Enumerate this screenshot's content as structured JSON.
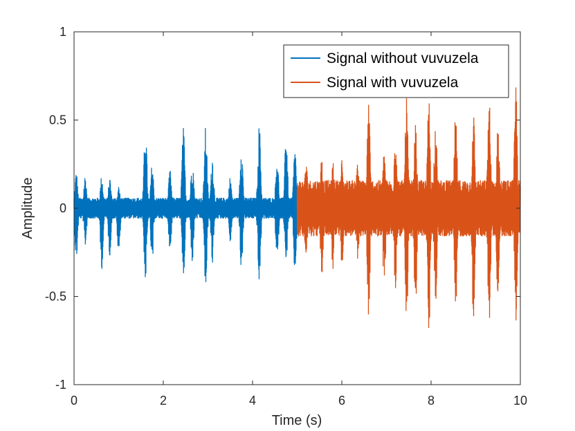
{
  "chart_data": {
    "type": "line",
    "title": "",
    "xlabel": "Time (s)",
    "ylabel": "Amplitude",
    "xlim": [
      0,
      10
    ],
    "ylim": [
      -1,
      1
    ],
    "x_ticks": [
      0,
      2,
      4,
      6,
      8,
      10
    ],
    "x_tick_labels": [
      "0",
      "2",
      "4",
      "6",
      "8",
      "10"
    ],
    "y_ticks": [
      -1,
      -0.5,
      0,
      0.5,
      1
    ],
    "y_tick_labels": [
      "-1",
      "-0.5",
      "0",
      "0.5",
      "1"
    ],
    "grid": false,
    "legend": {
      "location": "top-right",
      "box": true
    },
    "series": [
      {
        "name": "Signal without vuvuzela",
        "color": "#0072BD",
        "x_range": [
          0,
          5
        ],
        "noise_floor": 0.06,
        "peaks": [
          {
            "t": 0.05,
            "max": 0.21,
            "min": -0.3
          },
          {
            "t": 0.25,
            "max": 0.19,
            "min": -0.22
          },
          {
            "t": 0.62,
            "max": 0.19,
            "min": -0.35
          },
          {
            "t": 0.8,
            "max": 0.18,
            "min": -0.27
          },
          {
            "t": 1.0,
            "max": 0.13,
            "min": -0.27
          },
          {
            "t": 1.6,
            "max": 0.48,
            "min": -0.42
          },
          {
            "t": 1.75,
            "max": 0.26,
            "min": -0.33
          },
          {
            "t": 2.15,
            "max": 0.22,
            "min": -0.25
          },
          {
            "t": 2.45,
            "max": 0.46,
            "min": -0.42
          },
          {
            "t": 2.65,
            "max": 0.29,
            "min": -0.31
          },
          {
            "t": 2.95,
            "max": 0.47,
            "min": -0.47
          },
          {
            "t": 3.1,
            "max": 0.3,
            "min": -0.32
          },
          {
            "t": 3.5,
            "max": 0.18,
            "min": -0.2
          },
          {
            "t": 3.75,
            "max": 0.38,
            "min": -0.35
          },
          {
            "t": 4.15,
            "max": 0.48,
            "min": -0.44
          },
          {
            "t": 4.55,
            "max": 0.3,
            "min": -0.32
          },
          {
            "t": 4.75,
            "max": 0.45,
            "min": -0.33
          },
          {
            "t": 4.95,
            "max": 0.35,
            "min": -0.38
          }
        ]
      },
      {
        "name": "Signal with vuvuzela",
        "color": "#D95319",
        "x_range": [
          5,
          10
        ],
        "noise_floor": 0.16,
        "peaks": [
          {
            "t": 5.2,
            "max": 0.28,
            "min": -0.3
          },
          {
            "t": 5.55,
            "max": 0.3,
            "min": -0.4
          },
          {
            "t": 5.8,
            "max": 0.27,
            "min": -0.35
          },
          {
            "t": 6.0,
            "max": 0.28,
            "min": -0.35
          },
          {
            "t": 6.35,
            "max": 0.3,
            "min": -0.35
          },
          {
            "t": 6.6,
            "max": 0.64,
            "min": -0.63
          },
          {
            "t": 6.95,
            "max": 0.34,
            "min": -0.45
          },
          {
            "t": 7.2,
            "max": 0.44,
            "min": -0.48
          },
          {
            "t": 7.45,
            "max": 0.64,
            "min": -0.74
          },
          {
            "t": 7.65,
            "max": 0.48,
            "min": -0.6
          },
          {
            "t": 7.95,
            "max": 0.64,
            "min": -0.75
          },
          {
            "t": 8.1,
            "max": 0.52,
            "min": -0.55
          },
          {
            "t": 8.55,
            "max": 0.54,
            "min": -0.63
          },
          {
            "t": 8.95,
            "max": 0.55,
            "min": -0.65
          },
          {
            "t": 9.3,
            "max": 0.64,
            "min": -0.69
          },
          {
            "t": 9.5,
            "max": 0.48,
            "min": -0.55
          },
          {
            "t": 9.9,
            "max": 0.72,
            "min": -0.64
          }
        ]
      }
    ]
  }
}
